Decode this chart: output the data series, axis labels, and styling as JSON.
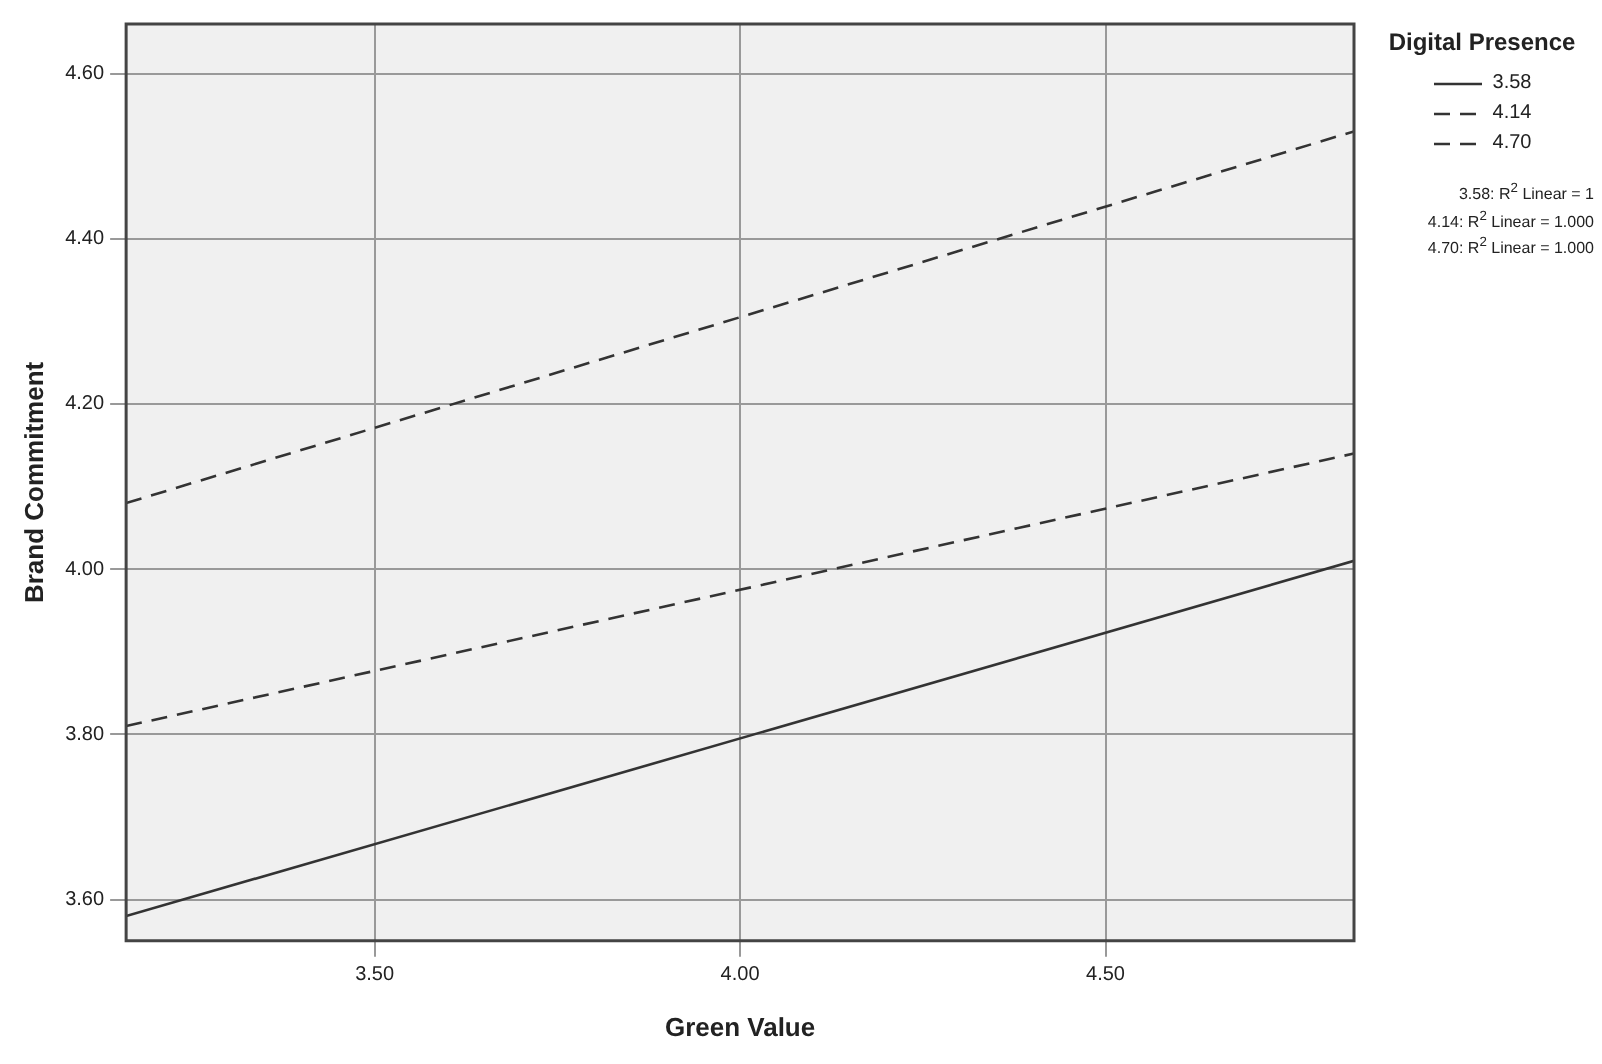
{
  "chart_data": {
    "type": "line",
    "xlabel": "Green Value",
    "ylabel": "Brand Commitment",
    "legend_title": "Digital Presence",
    "x": [
      3.16,
      4.84
    ],
    "series": [
      {
        "name": "3.58",
        "color": "#333333",
        "line_style": "solid",
        "values": [
          3.58,
          4.01
        ]
      },
      {
        "name": "4.14",
        "color": "#333333",
        "line_style": "dashed",
        "values": [
          3.81,
          4.14
        ]
      },
      {
        "name": "4.70",
        "color": "#333333",
        "line_style": "dashed",
        "values": [
          4.08,
          4.53
        ]
      }
    ],
    "xlim": [
      3.16,
      4.84
    ],
    "xticks": [
      {
        "value": 3.5,
        "label": "3.50"
      },
      {
        "value": 4,
        "label": "4.00"
      },
      {
        "value": 4.5,
        "label": "4.50"
      }
    ],
    "ylim": [
      3.55,
      4.66
    ],
    "yticks": [
      {
        "value": 3.6,
        "label": "3.60"
      },
      {
        "value": 3.8,
        "label": "3.80"
      },
      {
        "value": 4,
        "label": "4.00"
      },
      {
        "value": 4.2,
        "label": "4.20"
      },
      {
        "value": 4.4,
        "label": "4.40"
      },
      {
        "value": 4.6,
        "label": "4.60"
      }
    ],
    "grid": true,
    "legend": "top right",
    "marker": "none",
    "annotations": [
      "3.58: R$^{2}$ Linear = 1",
      "4.14: R$^{2}$ Linear = 1.000",
      "4.70: R$^{2}$ Linear = 1.000"
    ]
  }
}
